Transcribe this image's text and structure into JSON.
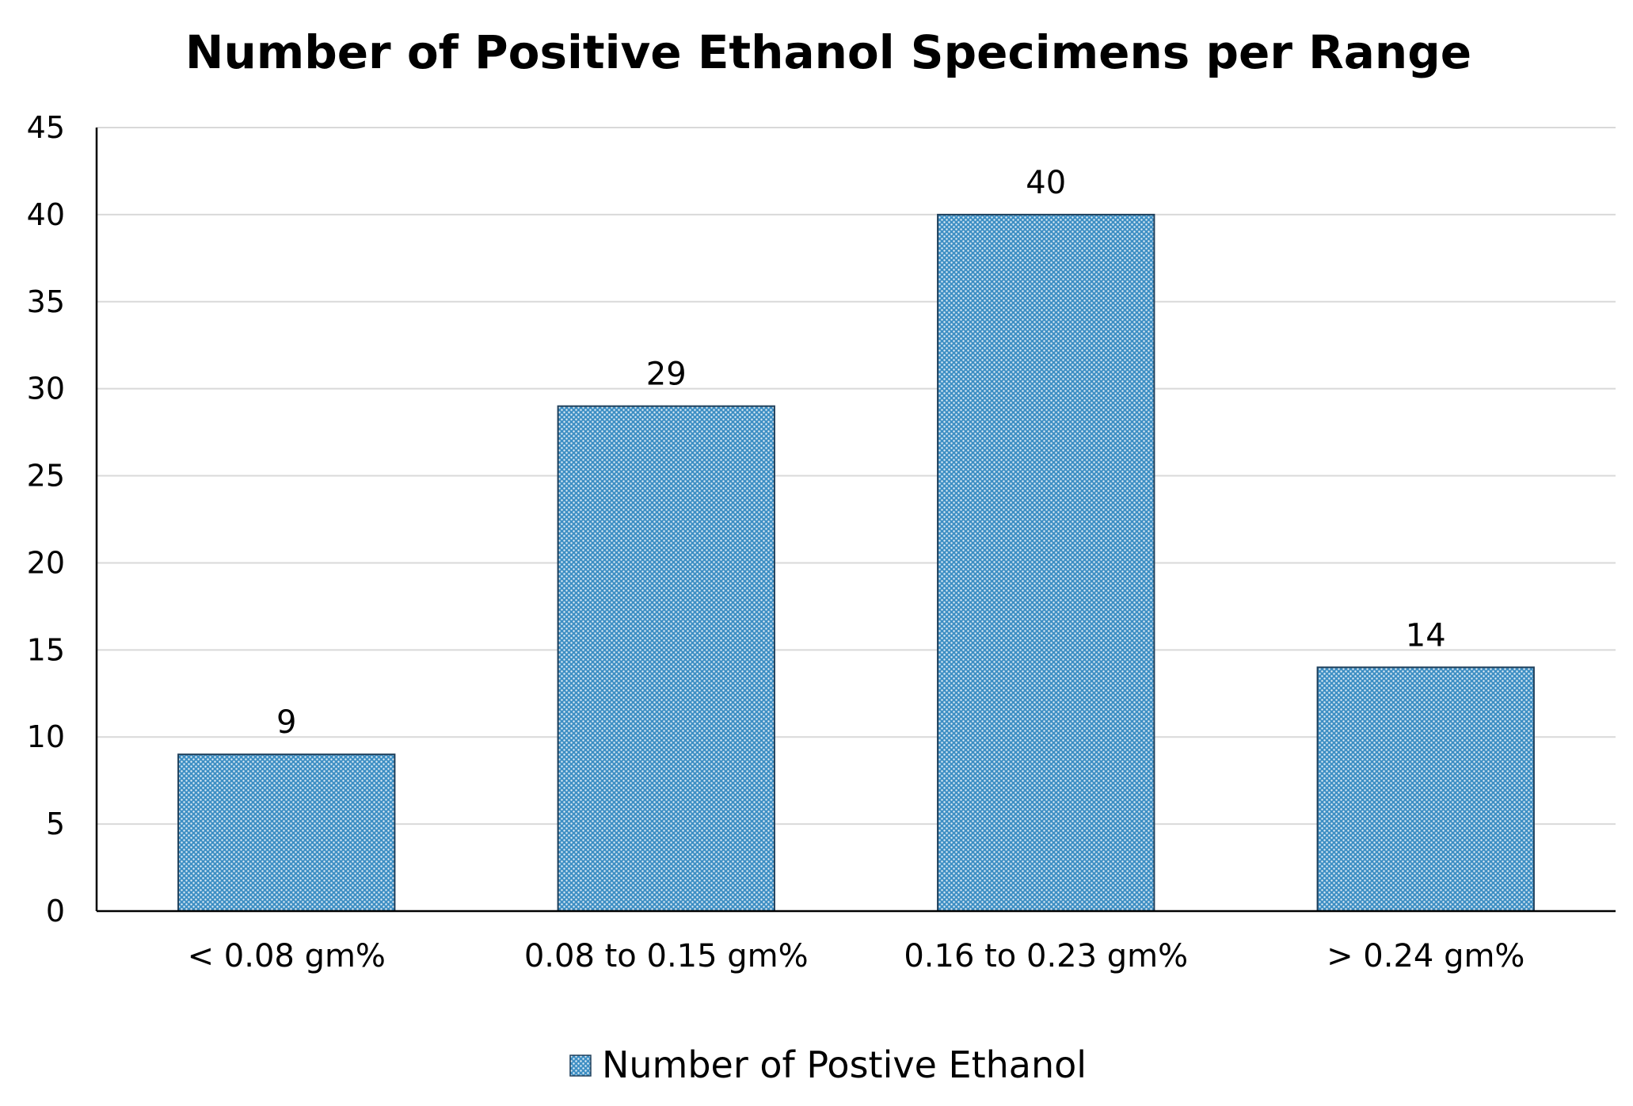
{
  "chart_data": {
    "type": "bar",
    "title": "Number of Positive Ethanol Specimens per Range",
    "categories": [
      "< 0.08 gm%",
      "0.08 to 0.15 gm%",
      "0.16 to 0.23 gm%",
      "> 0.24 gm%"
    ],
    "series": [
      {
        "name": "Number of Postive Ethanol",
        "values": [
          9,
          29,
          40,
          14
        ],
        "color": "#3e8fc4"
      }
    ],
    "xlabel": "",
    "ylabel": "",
    "ylim": [
      0,
      45
    ],
    "yticks": [
      0,
      5,
      10,
      15,
      20,
      25,
      30,
      35,
      40,
      45
    ],
    "grid": true,
    "legend_position": "bottom-center",
    "data_labels": true
  }
}
